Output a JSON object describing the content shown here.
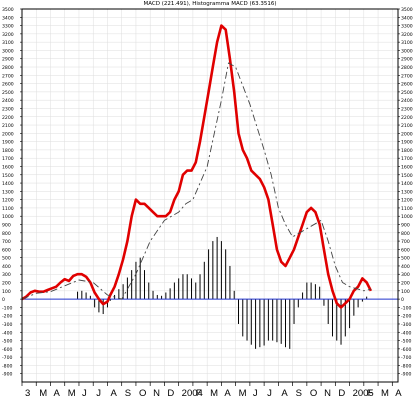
{
  "title": "MACD (221.491), Histogramma MACD (63.3516)",
  "colors": {
    "macd": "#e00000",
    "signal": "#444444",
    "histogram": "#000000",
    "zero": "#2233cc",
    "grid": "#dddddd"
  },
  "chart_data": {
    "type": "line",
    "title": "MACD (221.491), Histogramma MACD (63.3516)",
    "ylim": [
      -1000,
      3500
    ],
    "y_ticks": [
      3500,
      3400,
      3300,
      3200,
      3100,
      3000,
      2900,
      2800,
      2700,
      2600,
      2500,
      2400,
      2300,
      2200,
      2100,
      2000,
      1900,
      1800,
      1700,
      1600,
      1500,
      1400,
      1300,
      1200,
      1100,
      1000,
      900,
      800,
      700,
      600,
      500,
      400,
      300,
      200,
      100,
      0,
      -100,
      -200,
      -300,
      -400,
      -500,
      -600,
      -700,
      -800,
      -900
    ],
    "y_tick_labels": [
      "3500",
      "3400",
      "3300",
      "3200",
      "3100",
      "3000",
      "2900",
      "2800",
      "2700",
      "2600",
      "2500",
      "2400",
      "2300",
      "2200",
      "2100",
      "2000",
      "1900",
      "1800",
      "1700",
      "1600",
      "1500",
      "1400",
      "1300",
      "1200",
      "1100",
      "1000",
      "900",
      "800",
      "700",
      "600",
      "500",
      "400",
      "300",
      "200",
      "100",
      "0",
      "-100",
      "-200",
      "-300",
      "-400",
      "-500",
      "-600",
      "-700",
      "-800",
      "-900"
    ],
    "x_ticks": [
      "3",
      "M",
      "A",
      "M",
      "J",
      "J",
      "A",
      "S",
      "O",
      "N",
      "D",
      "2004",
      "F",
      "M",
      "A",
      "M",
      "J",
      "J",
      "A",
      "S",
      "O",
      "N",
      "D",
      "2005",
      "F",
      "M",
      "A"
    ],
    "x_range": [
      0,
      26.4
    ],
    "grid": true,
    "series": [
      {
        "kind": "macd",
        "x": [
          0,
          0.3,
          0.6,
          0.9,
          1.2,
          1.5,
          1.8,
          2.1,
          2.4,
          2.7,
          3.0,
          3.3,
          3.6,
          3.9,
          4.2,
          4.5,
          4.8,
          5.1,
          5.4,
          5.7,
          6.0,
          6.2,
          6.5,
          6.8,
          7.1,
          7.4,
          7.7,
          8.0,
          8.3,
          8.6,
          8.9,
          9.2,
          9.5,
          9.8,
          10.1,
          10.4,
          10.7,
          11.0,
          11.3,
          11.6,
          11.9,
          12.2,
          12.5,
          12.8,
          13.1,
          13.4,
          13.7,
          14.0,
          14.3,
          14.6,
          14.9,
          15.2,
          15.5,
          15.8,
          16.1,
          16.4,
          16.7,
          17.0,
          17.3,
          17.6,
          17.9,
          18.2,
          18.5,
          18.8,
          19.1,
          19.4,
          19.7,
          20.0,
          20.3,
          20.6,
          20.9,
          21.2,
          21.5,
          21.8,
          22.1,
          22.4,
          22.7,
          23.0,
          23.3,
          23.6,
          23.9,
          24.2,
          24.5
        ],
        "values": [
          0,
          30,
          80,
          100,
          90,
          90,
          110,
          130,
          150,
          200,
          240,
          220,
          280,
          300,
          300,
          270,
          200,
          80,
          0,
          -60,
          -30,
          50,
          150,
          300,
          480,
          700,
          1000,
          1200,
          1150,
          1150,
          1100,
          1050,
          1000,
          1000,
          1000,
          1050,
          1200,
          1300,
          1500,
          1550,
          1550,
          1650,
          1900,
          2200,
          2500,
          2800,
          3100,
          3300,
          3250,
          2900,
          2500,
          2000,
          1800,
          1700,
          1550,
          1500,
          1450,
          1350,
          1200,
          900,
          600,
          450,
          400,
          500,
          600,
          750,
          900,
          1050,
          1100,
          1050,
          900,
          600,
          300,
          100,
          -50,
          -100,
          -50,
          0,
          100,
          150,
          250,
          200,
          100
        ],
        "name": ""
      },
      {
        "kind": "signal",
        "x": [
          0,
          1.0,
          2.0,
          3.0,
          4.0,
          5.0,
          6.0,
          7.0,
          8.0,
          9.0,
          10.0,
          11.0,
          11.5,
          12.0,
          13.0,
          13.5,
          14.0,
          14.5,
          15.0,
          16.0,
          17.0,
          17.5,
          18.0,
          18.5,
          19.0,
          20.0,
          21.0,
          21.5,
          22.0,
          22.5,
          23.0,
          24.0,
          24.5
        ],
        "values": [
          0,
          70,
          90,
          160,
          230,
          200,
          50,
          0,
          300,
          700,
          950,
          1050,
          1150,
          1200,
          1600,
          2000,
          2400,
          2850,
          2800,
          2350,
          1800,
          1500,
          1100,
          900,
          750,
          850,
          950,
          700,
          400,
          200,
          150,
          100,
          120
        ],
        "name": ""
      }
    ],
    "histogram": {
      "x": [
        3.9,
        4.2,
        4.5,
        4.8,
        5.1,
        5.4,
        5.7,
        6.0,
        6.2,
        6.5,
        6.8,
        7.1,
        7.4,
        7.7,
        8.0,
        8.3,
        8.6,
        8.9,
        9.2,
        9.5,
        9.8,
        10.1,
        10.4,
        10.7,
        11.0,
        11.3,
        11.6,
        11.9,
        12.2,
        12.5,
        12.8,
        13.1,
        13.4,
        13.7,
        14.0,
        14.3,
        14.6,
        14.9,
        15.2,
        15.5,
        15.8,
        16.1,
        16.4,
        16.7,
        17.0,
        17.3,
        17.6,
        17.9,
        18.2,
        18.5,
        18.8,
        19.1,
        19.4,
        19.7,
        20.0,
        20.3,
        20.6,
        20.9,
        21.2,
        21.5,
        21.8,
        22.1,
        22.4,
        22.7,
        23.0,
        23.3,
        23.6,
        23.9,
        24.2
      ],
      "values": [
        90,
        100,
        80,
        40,
        -100,
        -160,
        -180,
        -100,
        -20,
        50,
        120,
        180,
        260,
        350,
        450,
        500,
        350,
        200,
        100,
        50,
        40,
        80,
        130,
        200,
        250,
        300,
        300,
        250,
        200,
        300,
        450,
        600,
        700,
        750,
        700,
        600,
        400,
        100,
        -300,
        -450,
        -500,
        -550,
        -600,
        -580,
        -560,
        -500,
        -500,
        -520,
        -540,
        -580,
        -600,
        -300,
        -100,
        80,
        200,
        200,
        180,
        150,
        -80,
        -300,
        -450,
        -500,
        -550,
        -450,
        -350,
        -200,
        -100,
        -30,
        30
      ],
      "name": ""
    }
  }
}
